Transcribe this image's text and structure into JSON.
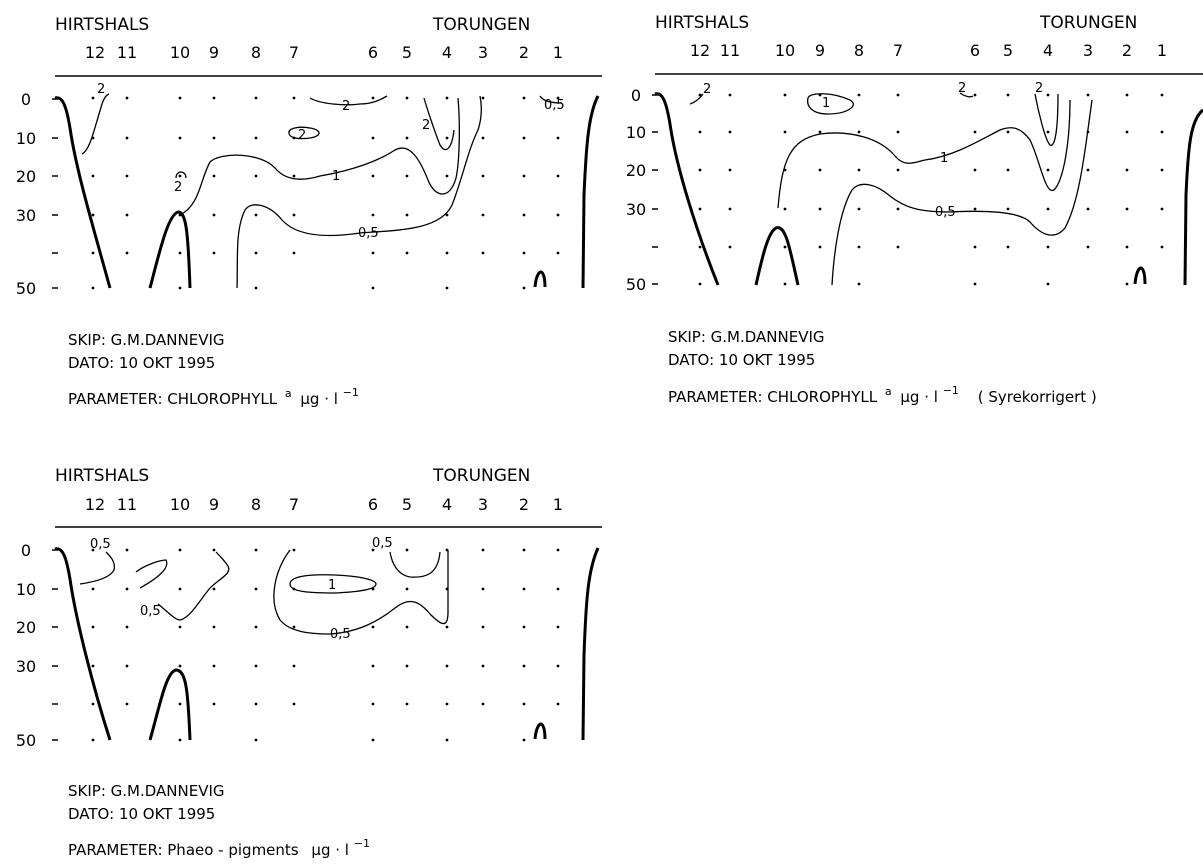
{
  "panels": [
    {
      "place_left": "HIRTSHALS",
      "place_right": "TORUNGEN",
      "stations": [
        "12",
        "11",
        "10",
        "9",
        "8",
        "7",
        "6",
        "5",
        "4",
        "3",
        "2",
        "1"
      ],
      "depths": [
        "0",
        "10",
        "20",
        "30",
        "50"
      ],
      "contour_labels": [
        "2",
        "2",
        "2",
        "0,5",
        "2",
        "2",
        "1",
        "0,5"
      ],
      "skip": "SKIP: G.M.DANNEVIG",
      "dato": "DATO: 10 OKT 1995",
      "parameter_prefix": "PARAMETER: CHLOROPHYLL",
      "parameter_sub": "a",
      "parameter_unit": "μg · l",
      "parameter_exp": "−1",
      "parameter_note": ""
    },
    {
      "place_left": "HIRTSHALS",
      "place_right": "TORUNGEN",
      "stations": [
        "12",
        "11",
        "10",
        "9",
        "8",
        "7",
        "6",
        "5",
        "4",
        "3",
        "2",
        "1"
      ],
      "depths": [
        "0",
        "10",
        "20",
        "30",
        "50"
      ],
      "contour_labels": [
        "2",
        "1",
        "2",
        "2",
        "1",
        "0,5"
      ],
      "skip": "SKIP: G.M.DANNEVIG",
      "dato": "DATO: 10 OKT 1995",
      "parameter_prefix": "PARAMETER: CHLOROPHYLL",
      "parameter_sub": "a",
      "parameter_unit": "μg · l",
      "parameter_exp": "−1",
      "parameter_note": "( Syrekorrigert )"
    },
    {
      "place_left": "HIRTSHALS",
      "place_right": "TORUNGEN",
      "stations": [
        "12",
        "11",
        "10",
        "9",
        "8",
        "7",
        "6",
        "5",
        "4",
        "3",
        "2",
        "1"
      ],
      "depths": [
        "0",
        "10",
        "20",
        "30",
        "50"
      ],
      "contour_labels": [
        "0,5",
        "0,5",
        "0,5",
        "1",
        "0,5"
      ],
      "skip": "SKIP: G.M.DANNEVIG",
      "dato": "DATO: 10 OKT 1995",
      "parameter_prefix": "PARAMETER: Phaeo - pigments",
      "parameter_sub": "",
      "parameter_unit": "μg · l",
      "parameter_exp": "−1",
      "parameter_note": ""
    }
  ]
}
